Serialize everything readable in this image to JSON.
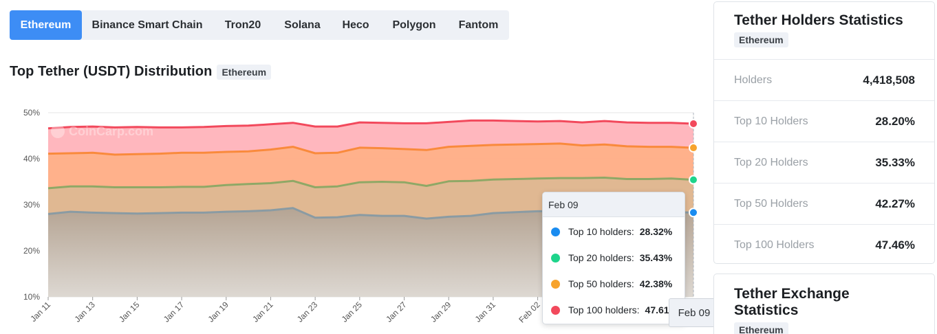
{
  "tabs": [
    {
      "label": "Ethereum",
      "active": true
    },
    {
      "label": "Binance Smart Chain",
      "active": false
    },
    {
      "label": "Tron20",
      "active": false
    },
    {
      "label": "Solana",
      "active": false
    },
    {
      "label": "Heco",
      "active": false
    },
    {
      "label": "Polygon",
      "active": false
    },
    {
      "label": "Fantom",
      "active": false
    }
  ],
  "main": {
    "title": "Top Tether (USDT) Distribution",
    "badge": "Ethereum",
    "watermark": "CoinCarp.com"
  },
  "chart_data": {
    "type": "area",
    "x": [
      "Jan 11",
      "Jan 12",
      "Jan 13",
      "Jan 14",
      "Jan 15",
      "Jan 16",
      "Jan 17",
      "Jan 18",
      "Jan 19",
      "Jan 20",
      "Jan 21",
      "Jan 22",
      "Jan 23",
      "Jan 24",
      "Jan 25",
      "Jan 26",
      "Jan 27",
      "Jan 28",
      "Jan 29",
      "Jan 30",
      "Jan 31",
      "Feb 01",
      "Feb 02",
      "Feb 03",
      "Feb 04",
      "Feb 05",
      "Feb 06",
      "Feb 07",
      "Feb 08",
      "Feb 09"
    ],
    "x_tick_labels": [
      "Jan 11",
      "Jan 13",
      "Jan 15",
      "Jan 17",
      "Jan 19",
      "Jan 21",
      "Jan 23",
      "Jan 25",
      "Jan 27",
      "Jan 29",
      "Jan 31",
      "Feb 02"
    ],
    "series": [
      {
        "name": "Top 100 holders",
        "color": "#f2495c",
        "fill": "#ffb3bb",
        "values": [
          46.6,
          46.9,
          47.0,
          46.8,
          46.9,
          46.8,
          46.8,
          46.9,
          47.1,
          47.2,
          47.5,
          47.8,
          47.0,
          47.0,
          47.9,
          47.8,
          47.7,
          47.7,
          48.0,
          48.3,
          48.3,
          48.2,
          48.1,
          48.2,
          47.9,
          48.2,
          47.9,
          47.8,
          47.8,
          47.61
        ]
      },
      {
        "name": "Top 50 holders",
        "color": "#f98a3c",
        "fill": "#ffb088",
        "values": [
          41.1,
          41.2,
          41.3,
          40.9,
          41.0,
          41.1,
          41.3,
          41.3,
          41.5,
          41.6,
          42.0,
          42.6,
          41.2,
          41.3,
          42.4,
          42.3,
          42.1,
          41.9,
          42.6,
          42.8,
          43.0,
          43.1,
          43.2,
          43.3,
          42.9,
          43.1,
          42.7,
          42.6,
          42.6,
          42.38
        ]
      },
      {
        "name": "Top 20 holders",
        "color": "#8fa866",
        "fill": "#deb892",
        "values": [
          33.6,
          34.0,
          34.0,
          33.8,
          33.8,
          33.8,
          33.9,
          33.9,
          34.3,
          34.5,
          34.7,
          35.2,
          33.8,
          34.0,
          34.9,
          35.0,
          34.9,
          34.1,
          35.1,
          35.2,
          35.5,
          35.6,
          35.7,
          35.8,
          35.8,
          35.9,
          35.6,
          35.6,
          35.7,
          35.43
        ]
      },
      {
        "name": "Top 10 holders",
        "color": "#8a9ba3",
        "fill": "#b8aa9b",
        "values": [
          28.0,
          28.5,
          28.3,
          28.2,
          28.1,
          28.2,
          28.3,
          28.3,
          28.5,
          28.6,
          28.8,
          29.3,
          27.2,
          27.3,
          27.8,
          27.6,
          27.6,
          27.0,
          27.4,
          27.6,
          28.2,
          28.4,
          28.6,
          28.6,
          28.6,
          28.7,
          28.5,
          28.4,
          28.4,
          28.32
        ]
      }
    ],
    "dot_colors": [
      "#f2495c",
      "#f7a32c",
      "#1ed48b",
      "#1a8cf0"
    ],
    "ylim": [
      10,
      50
    ],
    "y_ticks": [
      "10%",
      "20%",
      "30%",
      "40%",
      "50%"
    ],
    "grid": true,
    "legend": "none"
  },
  "tooltip": {
    "date": "Feb 09",
    "rows": [
      {
        "label": "Top 10 holders:",
        "value": "28.32%",
        "color": "#1a8cf0"
      },
      {
        "label": "Top 20 holders:",
        "value": "35.43%",
        "color": "#1ed48b"
      },
      {
        "label": "Top 50 holders:",
        "value": "42.38%",
        "color": "#f7a32c"
      },
      {
        "label": "Top 100 holders:",
        "value": "47.61%",
        "color": "#f2495c"
      }
    ],
    "x_label": "Feb 09"
  },
  "holders_card": {
    "title": "Tether Holders Statistics",
    "badge": "Ethereum",
    "rows": [
      {
        "label": "Holders",
        "value": "4,418,508"
      },
      {
        "label": "Top 10 Holders",
        "value": "28.20%"
      },
      {
        "label": "Top 20 Holders",
        "value": "35.33%"
      },
      {
        "label": "Top 50 Holders",
        "value": "42.27%"
      },
      {
        "label": "Top 100 Holders",
        "value": "47.46%"
      }
    ]
  },
  "exchange_card": {
    "title": "Tether Exchange Statistics",
    "badge": "Ethereum"
  }
}
